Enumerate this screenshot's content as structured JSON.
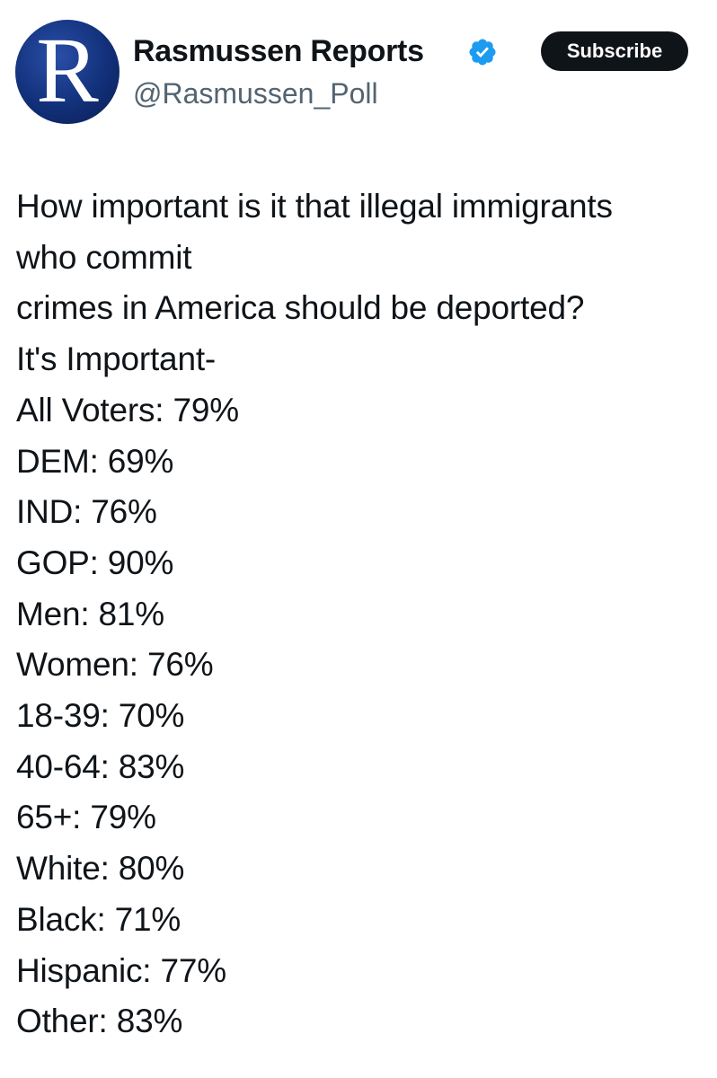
{
  "header": {
    "avatar_letter": "R",
    "name": "Rasmussen Reports",
    "handle": "@Rasmussen_Poll",
    "button": "Subscribe"
  },
  "tweet": {
    "lines": [
      "How important is it that illegal immigrants",
      "who commit",
      "crimes in America should be deported?",
      "It's Important-",
      "All Voters: 79%",
      "DEM: 69%",
      "IND: 76%",
      "GOP: 90%",
      "Men: 81%",
      "Women: 76%",
      "18-39: 70%",
      "40-64: 83%",
      "65+: 79%",
      "White: 80%",
      "Black: 71%",
      "Hispanic: 77%",
      "Other: 83%"
    ]
  }
}
